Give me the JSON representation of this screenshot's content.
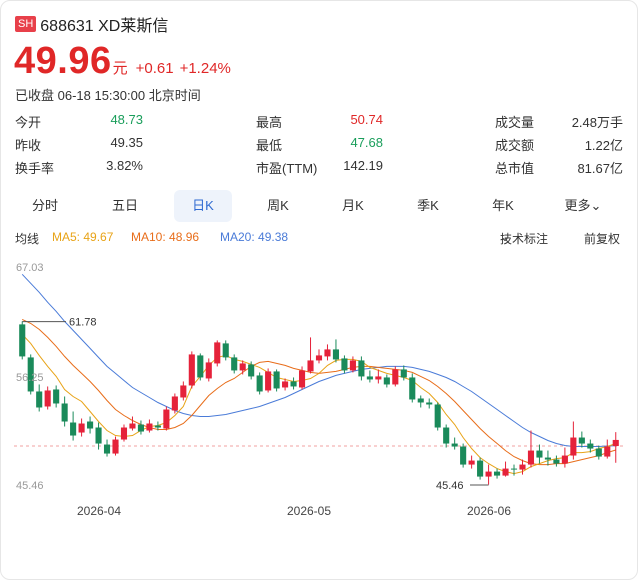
{
  "header": {
    "exchange_badge": "SH",
    "stock_name": "688631 XD莱斯信"
  },
  "quote": {
    "price": "49.96",
    "unit": "元",
    "change": "+0.61",
    "change_pct": "+1.24%",
    "status": "已收盘 06-18 15:30:00 北京时间"
  },
  "stats": [
    {
      "label": "今开",
      "value": "48.73",
      "color": "green"
    },
    {
      "label": "最高",
      "value": "50.74",
      "color": "red"
    },
    {
      "label": "成交量",
      "value": "2.48万手",
      "color": "normal"
    },
    {
      "label": "昨收",
      "value": "49.35",
      "color": "normal"
    },
    {
      "label": "最低",
      "value": "47.68",
      "color": "green"
    },
    {
      "label": "成交额",
      "value": "1.22亿",
      "color": "normal"
    },
    {
      "label": "换手率",
      "value": "3.82%",
      "color": "normal"
    },
    {
      "label": "市盈(TTM)",
      "value": "142.19",
      "color": "normal"
    },
    {
      "label": "总市值",
      "value": "81.67亿",
      "color": "normal"
    }
  ],
  "tabs": [
    {
      "label": "分时",
      "active": false
    },
    {
      "label": "五日",
      "active": false
    },
    {
      "label": "日K",
      "active": true
    },
    {
      "label": "周K",
      "active": false
    },
    {
      "label": "月K",
      "active": false
    },
    {
      "label": "季K",
      "active": false
    },
    {
      "label": "年K",
      "active": false
    },
    {
      "label": "更多",
      "active": false
    }
  ],
  "ma": {
    "title": "均线",
    "ma5": "MA5: 49.67",
    "ma10": "MA10: 48.96",
    "ma20": "MA20: 49.38",
    "tech_label": "技术标注",
    "adjust_label": "前复权",
    "colors": {
      "ma5": "#e8a317",
      "ma10": "#e86d1a",
      "ma20": "#4a7bd8"
    }
  },
  "chart_data": {
    "type": "candlestick",
    "y_max_label": "67.03",
    "y_mid_label": "56.25",
    "y_min_label": "45.46",
    "ylim": [
      45.46,
      67.03
    ],
    "high_marker": "61.78",
    "low_marker": "45.46",
    "reference_close": 49.35,
    "x_labels": [
      "2026-04",
      "2026-05",
      "2026-06"
    ],
    "candles": [
      [
        61.5,
        58.3,
        61.8,
        58.0
      ],
      [
        58.2,
        54.8,
        58.5,
        54.5
      ],
      [
        54.8,
        53.2,
        55.5,
        52.8
      ],
      [
        53.3,
        54.9,
        55.3,
        53.0
      ],
      [
        55.0,
        53.6,
        55.4,
        53.2
      ],
      [
        53.6,
        51.8,
        54.3,
        51.3
      ],
      [
        51.7,
        50.4,
        52.8,
        49.9
      ],
      [
        50.7,
        51.6,
        52.1,
        50.3
      ],
      [
        51.8,
        51.1,
        52.3,
        50.6
      ],
      [
        51.2,
        49.6,
        51.7,
        49.0
      ],
      [
        49.5,
        48.6,
        50.0,
        48.3
      ],
      [
        48.6,
        50.0,
        50.3,
        48.4
      ],
      [
        50.0,
        51.2,
        51.5,
        49.8
      ],
      [
        51.1,
        51.6,
        52.3,
        50.9
      ],
      [
        51.5,
        50.8,
        51.9,
        50.5
      ],
      [
        50.9,
        51.6,
        52.0,
        50.7
      ],
      [
        51.4,
        51.2,
        51.8,
        50.9
      ],
      [
        51.1,
        53.0,
        53.3,
        50.9
      ],
      [
        52.9,
        54.3,
        54.6,
        52.6
      ],
      [
        54.2,
        55.4,
        55.8,
        53.9
      ],
      [
        55.4,
        58.5,
        58.8,
        55.1
      ],
      [
        58.4,
        56.2,
        58.6,
        55.9
      ],
      [
        56.1,
        57.7,
        58.1,
        55.8
      ],
      [
        57.6,
        59.7,
        59.9,
        57.3
      ],
      [
        59.6,
        58.2,
        59.9,
        57.9
      ],
      [
        58.2,
        56.9,
        58.5,
        56.6
      ],
      [
        56.9,
        57.6,
        57.9,
        56.5
      ],
      [
        57.5,
        56.3,
        57.8,
        56.0
      ],
      [
        56.4,
        54.8,
        56.7,
        54.5
      ],
      [
        54.9,
        56.8,
        57.1,
        54.7
      ],
      [
        56.8,
        55.1,
        57.0,
        54.8
      ],
      [
        55.2,
        55.8,
        56.1,
        54.9
      ],
      [
        55.8,
        55.3,
        56.2,
        55.0
      ],
      [
        55.2,
        56.9,
        57.3,
        55.0
      ],
      [
        56.8,
        57.9,
        60.2,
        56.6
      ],
      [
        57.9,
        58.4,
        59.0,
        57.6
      ],
      [
        58.3,
        59.0,
        59.5,
        57.9
      ],
      [
        59.0,
        58.0,
        60.0,
        57.7
      ],
      [
        58.1,
        56.9,
        58.4,
        56.6
      ],
      [
        56.9,
        57.9,
        58.3,
        56.7
      ],
      [
        57.9,
        56.3,
        58.3,
        55.9
      ],
      [
        56.3,
        56.0,
        56.9,
        55.7
      ],
      [
        56.0,
        56.3,
        57.0,
        55.6
      ],
      [
        56.2,
        55.5,
        56.5,
        55.2
      ],
      [
        55.5,
        57.0,
        57.3,
        55.3
      ],
      [
        57.0,
        56.2,
        57.4,
        55.9
      ],
      [
        56.2,
        54.0,
        56.6,
        53.7
      ],
      [
        54.1,
        53.7,
        54.4,
        53.2
      ],
      [
        53.7,
        53.5,
        54.1,
        53.1
      ],
      [
        53.5,
        51.2,
        53.7,
        50.9
      ],
      [
        51.2,
        49.6,
        51.5,
        49.2
      ],
      [
        49.6,
        49.3,
        50.2,
        49.0
      ],
      [
        49.3,
        47.5,
        49.6,
        47.2
      ],
      [
        47.5,
        47.9,
        48.4,
        47.1
      ],
      [
        47.9,
        46.3,
        48.2,
        46.0
      ],
      [
        46.3,
        46.8,
        47.5,
        45.5
      ],
      [
        46.8,
        46.4,
        47.1,
        46.1
      ],
      [
        46.4,
        47.1,
        47.8,
        46.3
      ],
      [
        47.1,
        47.0,
        47.5,
        46.4
      ],
      [
        47.0,
        47.5,
        48.0,
        46.5
      ],
      [
        47.5,
        48.9,
        50.9,
        47.2
      ],
      [
        48.9,
        48.2,
        49.5,
        47.6
      ],
      [
        48.2,
        48.0,
        48.9,
        47.4
      ],
      [
        48.0,
        47.6,
        48.4,
        47.3
      ],
      [
        47.6,
        48.4,
        49.2,
        47.2
      ],
      [
        48.4,
        50.2,
        51.8,
        48.0
      ],
      [
        50.2,
        49.6,
        50.8,
        49.2
      ],
      [
        49.6,
        49.1,
        50.0,
        48.7
      ],
      [
        49.1,
        48.3,
        49.4,
        48.0
      ],
      [
        48.3,
        49.3,
        50.0,
        48.1
      ],
      [
        49.35,
        49.96,
        50.74,
        47.68
      ]
    ],
    "ma5": [
      60.5,
      59.6,
      58.4,
      57.3,
      56.3,
      55.0,
      54.3,
      53.8,
      52.8,
      51.8,
      50.9,
      50.4,
      50.3,
      50.4,
      50.9,
      51.3,
      51.4,
      51.7,
      52.4,
      53.3,
      55.3,
      56.3,
      57.4,
      58.2,
      58.4,
      58.0,
      57.8,
      57.5,
      57.2,
      56.7,
      56.2,
      56.0,
      55.8,
      55.9,
      56.1,
      56.6,
      57.4,
      57.9,
      58.0,
      58.0,
      57.8,
      57.2,
      56.9,
      56.6,
      56.4,
      56.2,
      55.9,
      55.2,
      54.6,
      53.7,
      52.5,
      51.5,
      50.2,
      49.1,
      48.2,
      47.6,
      47.1,
      46.8,
      46.6,
      46.8,
      47.3,
      47.6,
      47.9,
      48.1,
      48.2,
      48.7,
      48.7,
      48.8,
      49.1,
      49.3,
      49.6
    ],
    "ma10": [
      62.0,
      61.6,
      61.0,
      60.2,
      59.3,
      58.3,
      57.4,
      56.6,
      55.8,
      54.9,
      53.9,
      53.0,
      52.4,
      51.9,
      51.5,
      51.2,
      51.0,
      51.0,
      51.2,
      51.6,
      52.4,
      53.4,
      54.4,
      55.1,
      55.7,
      56.1,
      56.7,
      57.3,
      57.7,
      57.8,
      57.6,
      57.4,
      57.1,
      56.9,
      56.7,
      56.6,
      56.7,
      56.8,
      57.0,
      57.2,
      57.3,
      57.3,
      57.2,
      57.1,
      57.0,
      56.9,
      56.7,
      56.3,
      55.9,
      55.3,
      54.6,
      53.8,
      52.9,
      52.0,
      51.1,
      50.3,
      49.6,
      48.9,
      48.3,
      47.9,
      47.6,
      47.5,
      47.5,
      47.6,
      47.6,
      47.8,
      48.0,
      48.2,
      48.4,
      48.7,
      48.96
    ],
    "ma20": [
      66.5,
      65.6,
      64.7,
      63.7,
      62.8,
      61.8,
      60.9,
      60.0,
      59.1,
      58.2,
      57.3,
      56.6,
      55.9,
      55.2,
      54.7,
      54.2,
      53.7,
      53.3,
      52.9,
      52.6,
      52.4,
      52.3,
      52.3,
      52.4,
      52.5,
      52.7,
      52.9,
      53.1,
      53.3,
      53.6,
      53.9,
      54.2,
      54.6,
      55.0,
      55.4,
      55.8,
      56.1,
      56.4,
      56.6,
      56.8,
      57.0,
      57.1,
      57.2,
      57.3,
      57.3,
      57.3,
      57.2,
      57.0,
      56.8,
      56.5,
      56.2,
      55.8,
      55.3,
      54.8,
      54.2,
      53.6,
      53.0,
      52.4,
      51.8,
      51.2,
      50.7,
      50.3,
      49.9,
      49.6,
      49.4,
      49.3,
      49.3,
      49.3,
      49.3,
      49.35,
      49.38
    ]
  }
}
